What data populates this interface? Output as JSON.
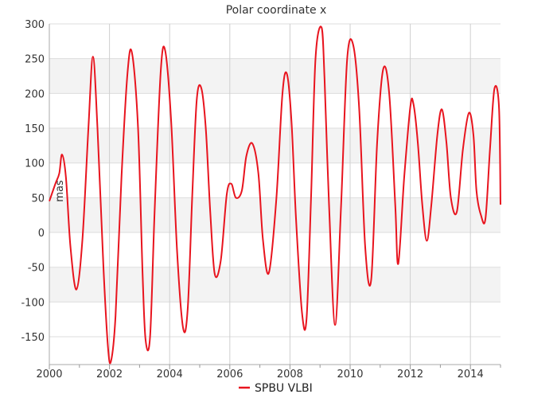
{
  "chart_data": {
    "type": "line",
    "title": "Polar coordinate x",
    "ylabel": "mas",
    "xlabel": "",
    "xlim": [
      2000,
      2015
    ],
    "ylim": [
      -190,
      300
    ],
    "x_ticks": [
      "2000",
      "2002",
      "2004",
      "2006",
      "2008",
      "2010",
      "2012",
      "2014"
    ],
    "y_ticks": [
      "300",
      "250",
      "200",
      "150",
      "100",
      "50",
      "0",
      "-50",
      "-100",
      "-150"
    ],
    "grid": true,
    "legend_position": "bottom-center",
    "series": [
      {
        "name": "SPBU VLBI",
        "color": "#e8141e",
        "x": [
          2000.0,
          2000.2,
          2000.33,
          2000.42,
          2000.55,
          2000.7,
          2000.9,
          2001.1,
          2001.3,
          2001.45,
          2001.6,
          2001.8,
          2001.95,
          2002.05,
          2002.2,
          2002.4,
          2002.6,
          2002.75,
          2002.95,
          2003.1,
          2003.2,
          2003.35,
          2003.5,
          2003.7,
          2003.85,
          2004.05,
          2004.25,
          2004.45,
          2004.6,
          2004.75,
          2004.9,
          2005.05,
          2005.2,
          2005.35,
          2005.5,
          2005.7,
          2005.9,
          2006.05,
          2006.2,
          2006.4,
          2006.55,
          2006.75,
          2006.95,
          2007.1,
          2007.3,
          2007.55,
          2007.75,
          2007.9,
          2008.05,
          2008.2,
          2008.4,
          2008.55,
          2008.7,
          2008.85,
          2009.05,
          2009.15,
          2009.3,
          2009.5,
          2009.7,
          2009.9,
          2010.1,
          2010.3,
          2010.5,
          2010.7,
          2010.9,
          2011.1,
          2011.3,
          2011.5,
          2011.6,
          2011.8,
          2012.0,
          2012.1,
          2012.25,
          2012.4,
          2012.55,
          2012.7,
          2012.9,
          2013.05,
          2013.2,
          2013.35,
          2013.55,
          2013.75,
          2013.95,
          2014.1,
          2014.2,
          2014.35,
          2014.5,
          2014.65,
          2014.8,
          2014.95
        ],
        "y": [
          45,
          70,
          85,
          112,
          80,
          -20,
          -82,
          -10,
          150,
          253,
          150,
          -50,
          -165,
          -185,
          -120,
          80,
          230,
          258,
          150,
          -60,
          -155,
          -150,
          30,
          230,
          262,
          160,
          -30,
          -138,
          -110,
          50,
          190,
          208,
          150,
          30,
          -60,
          -40,
          55,
          70,
          50,
          60,
          110,
          128,
          85,
          -10,
          -58,
          50,
          200,
          228,
          160,
          20,
          -115,
          -125,
          50,
          250,
          295,
          220,
          40,
          -133,
          40,
          248,
          270,
          180,
          -20,
          -68,
          130,
          235,
          200,
          40,
          -45,
          80,
          180,
          186,
          130,
          40,
          -12,
          40,
          140,
          177,
          130,
          50,
          30,
          120,
          172,
          140,
          60,
          25,
          20,
          120,
          207,
          180
        ],
        "tail_x": [
          2015.0
        ],
        "tail_y": [
          40
        ]
      }
    ]
  }
}
